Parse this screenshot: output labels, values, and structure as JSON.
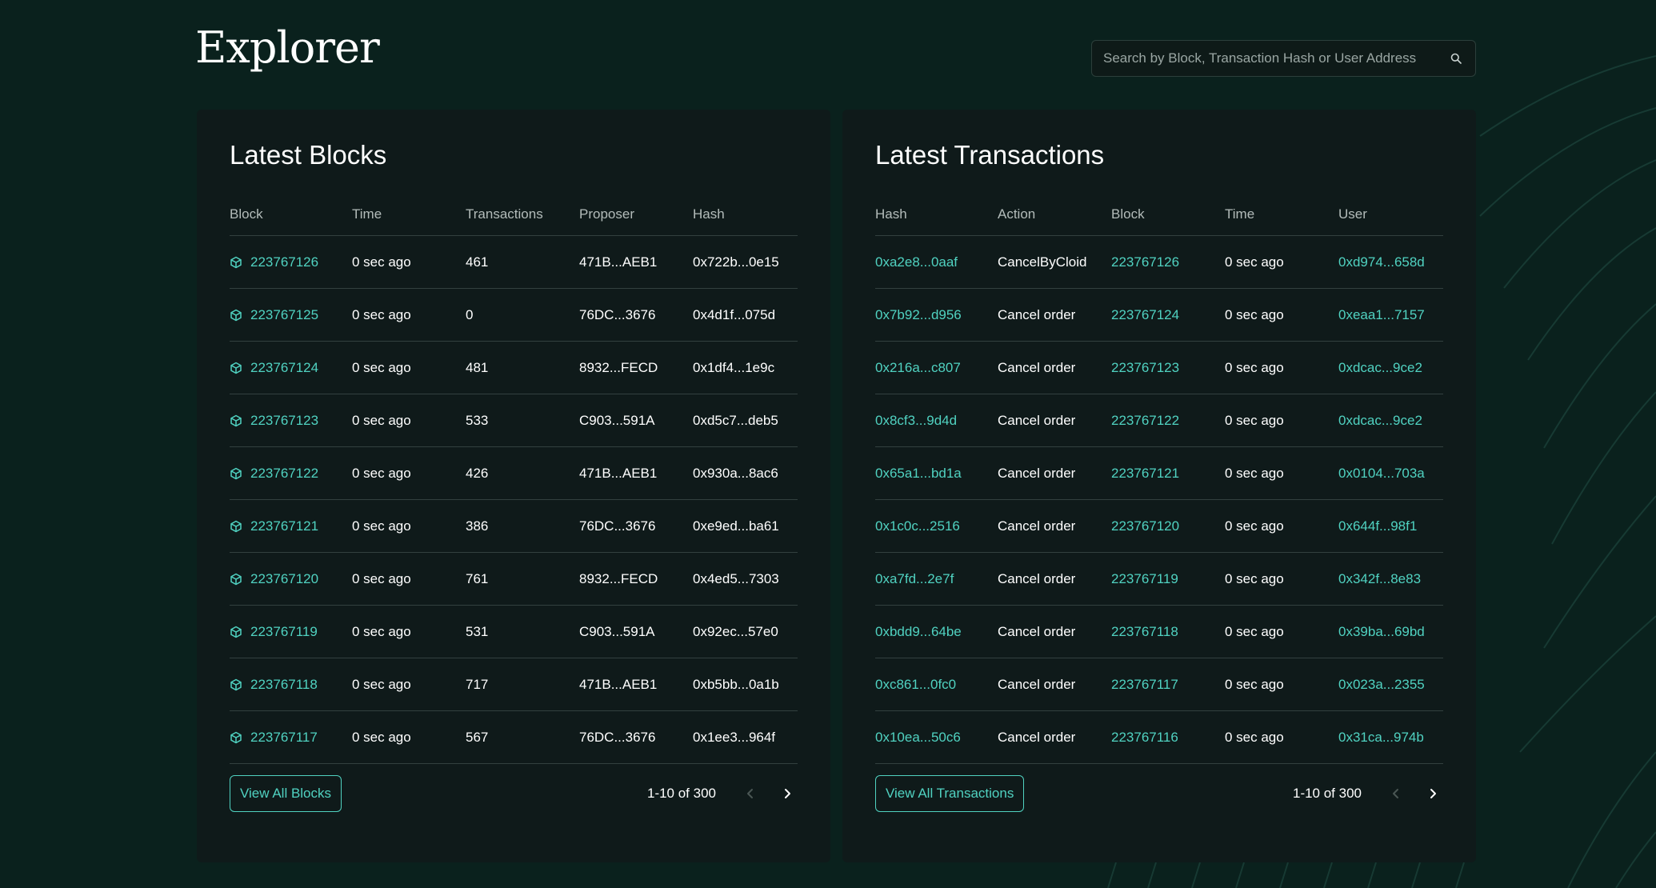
{
  "header": {
    "title": "Explorer",
    "search_placeholder": "Search by Block, Transaction Hash or User Address"
  },
  "blocks_panel": {
    "title": "Latest Blocks",
    "columns": [
      "Block",
      "Time",
      "Transactions",
      "Proposer",
      "Hash"
    ],
    "rows": [
      {
        "block": "223767126",
        "time": "0 sec ago",
        "transactions": "461",
        "proposer": "471B...AEB1",
        "hash": "0x722b...0e15"
      },
      {
        "block": "223767125",
        "time": "0 sec ago",
        "transactions": "0",
        "proposer": "76DC...3676",
        "hash": "0x4d1f...075d"
      },
      {
        "block": "223767124",
        "time": "0 sec ago",
        "transactions": "481",
        "proposer": "8932...FECD",
        "hash": "0x1df4...1e9c"
      },
      {
        "block": "223767123",
        "time": "0 sec ago",
        "transactions": "533",
        "proposer": "C903...591A",
        "hash": "0xd5c7...deb5"
      },
      {
        "block": "223767122",
        "time": "0 sec ago",
        "transactions": "426",
        "proposer": "471B...AEB1",
        "hash": "0x930a...8ac6"
      },
      {
        "block": "223767121",
        "time": "0 sec ago",
        "transactions": "386",
        "proposer": "76DC...3676",
        "hash": "0xe9ed...ba61"
      },
      {
        "block": "223767120",
        "time": "0 sec ago",
        "transactions": "761",
        "proposer": "8932...FECD",
        "hash": "0x4ed5...7303"
      },
      {
        "block": "223767119",
        "time": "0 sec ago",
        "transactions": "531",
        "proposer": "C903...591A",
        "hash": "0x92ec...57e0"
      },
      {
        "block": "223767118",
        "time": "0 sec ago",
        "transactions": "717",
        "proposer": "471B...AEB1",
        "hash": "0xb5bb...0a1b"
      },
      {
        "block": "223767117",
        "time": "0 sec ago",
        "transactions": "567",
        "proposer": "76DC...3676",
        "hash": "0x1ee3...964f"
      }
    ],
    "view_all_label": "View All Blocks",
    "pagination": "1-10 of 300"
  },
  "transactions_panel": {
    "title": "Latest Transactions",
    "columns": [
      "Hash",
      "Action",
      "Block",
      "Time",
      "User"
    ],
    "rows": [
      {
        "hash": "0xa2e8...0aaf",
        "action": "CancelByCloid",
        "block": "223767126",
        "time": "0 sec ago",
        "user": "0xd974...658d"
      },
      {
        "hash": "0x7b92...d956",
        "action": "Cancel order",
        "block": "223767124",
        "time": "0 sec ago",
        "user": "0xeaa1...7157"
      },
      {
        "hash": "0x216a...c807",
        "action": "Cancel order",
        "block": "223767123",
        "time": "0 sec ago",
        "user": "0xdcac...9ce2"
      },
      {
        "hash": "0x8cf3...9d4d",
        "action": "Cancel order",
        "block": "223767122",
        "time": "0 sec ago",
        "user": "0xdcac...9ce2"
      },
      {
        "hash": "0x65a1...bd1a",
        "action": "Cancel order",
        "block": "223767121",
        "time": "0 sec ago",
        "user": "0x0104...703a"
      },
      {
        "hash": "0x1c0c...2516",
        "action": "Cancel order",
        "block": "223767120",
        "time": "0 sec ago",
        "user": "0x644f...98f1"
      },
      {
        "hash": "0xa7fd...2e7f",
        "action": "Cancel order",
        "block": "223767119",
        "time": "0 sec ago",
        "user": "0x342f...8e83"
      },
      {
        "hash": "0xbdd9...64be",
        "action": "Cancel order",
        "block": "223767118",
        "time": "0 sec ago",
        "user": "0x39ba...69bd"
      },
      {
        "hash": "0xc861...0fc0",
        "action": "Cancel order",
        "block": "223767117",
        "time": "0 sec ago",
        "user": "0x023a...2355"
      },
      {
        "hash": "0x10ea...50c6",
        "action": "Cancel order",
        "block": "223767116",
        "time": "0 sec ago",
        "user": "0x31ca...974b"
      }
    ],
    "view_all_label": "View All Transactions",
    "pagination": "1-10 of 300"
  },
  "icons": {
    "search": "search-icon",
    "block": "cube-icon",
    "prev": "chevron-left-icon",
    "next": "chevron-right-icon"
  },
  "colors": {
    "background": "#0a211d",
    "panel": "#0f1a1a",
    "accent": "#50d2c1",
    "text": "#ffffff",
    "muted": "#b3bcba",
    "divider": "#33403f"
  }
}
